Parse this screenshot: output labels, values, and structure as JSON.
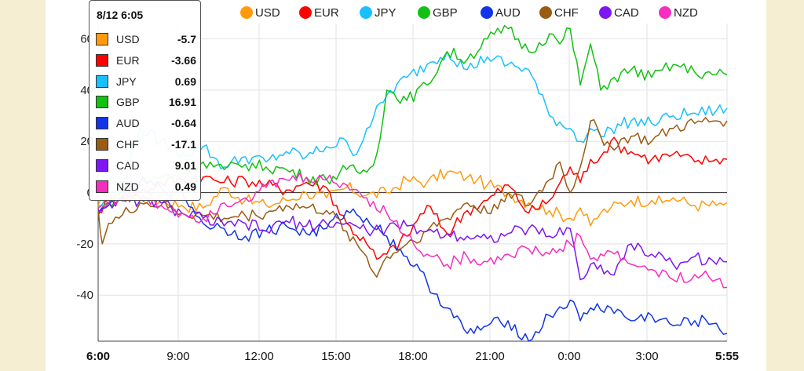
{
  "chart_data": {
    "type": "line",
    "ylim": [
      -58,
      66
    ],
    "y_ticks": [
      -40,
      -20,
      0,
      20,
      40,
      60
    ],
    "x_ticks": [
      "6:00",
      "9:00",
      "12:00",
      "15:00",
      "18:00",
      "21:00",
      "0:00",
      "3:00",
      "5:55"
    ],
    "x_ticks_bold": [
      "6:00",
      "5:55"
    ],
    "grid": true,
    "legend_position": "top",
    "series": [
      {
        "name": "USD",
        "color": "#ff9a0e",
        "points": [
          [
            0,
            -5
          ],
          [
            0.3,
            -3
          ],
          [
            1,
            0
          ],
          [
            2,
            -2
          ],
          [
            3,
            -3
          ],
          [
            4,
            -5
          ],
          [
            5,
            -6
          ],
          [
            6,
            2
          ],
          [
            7,
            -3
          ],
          [
            8,
            -5
          ],
          [
            9,
            -3
          ],
          [
            10,
            0
          ],
          [
            11,
            -2
          ],
          [
            12,
            2
          ],
          [
            13,
            -1
          ],
          [
            14,
            0
          ],
          [
            15,
            5
          ],
          [
            16,
            4
          ],
          [
            17,
            8
          ],
          [
            18,
            6
          ],
          [
            18.5,
            5
          ],
          [
            19,
            3
          ],
          [
            20,
            0
          ],
          [
            21,
            -4
          ],
          [
            22,
            -7
          ],
          [
            23,
            -10
          ],
          [
            23.5,
            -6
          ],
          [
            24,
            -13
          ],
          [
            24.5,
            -8
          ],
          [
            25,
            -6
          ],
          [
            26,
            -3
          ],
          [
            27,
            -3
          ],
          [
            27.5,
            -4
          ],
          [
            28,
            -2
          ],
          [
            29,
            -5
          ],
          [
            30,
            -5
          ],
          [
            30.5,
            -4
          ]
        ]
      },
      {
        "name": "EUR",
        "color": "#ff0000",
        "points": [
          [
            0,
            -7
          ],
          [
            0.5,
            -4
          ],
          [
            1,
            -2
          ],
          [
            2,
            0
          ],
          [
            3,
            4
          ],
          [
            4,
            5
          ],
          [
            5,
            6
          ],
          [
            6,
            4
          ],
          [
            7,
            5
          ],
          [
            8,
            3
          ],
          [
            9,
            1
          ],
          [
            10,
            4
          ],
          [
            11,
            2
          ],
          [
            12,
            -12
          ],
          [
            13,
            -20
          ],
          [
            13.5,
            -26
          ],
          [
            14,
            -24
          ],
          [
            15,
            -17
          ],
          [
            16,
            -5
          ],
          [
            17,
            -16
          ],
          [
            18,
            -7
          ],
          [
            19,
            -3
          ],
          [
            20,
            3
          ],
          [
            21,
            -8
          ],
          [
            22,
            -3
          ],
          [
            23,
            10
          ],
          [
            23.5,
            4
          ],
          [
            24,
            13
          ],
          [
            24.5,
            14
          ],
          [
            25,
            20
          ],
          [
            26,
            16
          ],
          [
            27,
            13
          ],
          [
            28,
            15
          ],
          [
            29,
            12
          ],
          [
            30,
            13
          ],
          [
            30.5,
            13
          ]
        ]
      },
      {
        "name": "JPY",
        "color": "#19c0ff",
        "points": [
          [
            0,
            -5
          ],
          [
            0.5,
            -3
          ],
          [
            1,
            0
          ],
          [
            2,
            25
          ],
          [
            3,
            20
          ],
          [
            4,
            15
          ],
          [
            5,
            18
          ],
          [
            6,
            10
          ],
          [
            7,
            14
          ],
          [
            8,
            12
          ],
          [
            9,
            16
          ],
          [
            10,
            14
          ],
          [
            11,
            18
          ],
          [
            12,
            20
          ],
          [
            12.5,
            15
          ],
          [
            13,
            25
          ],
          [
            14,
            38
          ],
          [
            15,
            45
          ],
          [
            16,
            50
          ],
          [
            17,
            55
          ],
          [
            18,
            48
          ],
          [
            19,
            53
          ],
          [
            20,
            50
          ],
          [
            21,
            48
          ],
          [
            22,
            30
          ],
          [
            23,
            25
          ],
          [
            23.5,
            20
          ],
          [
            24,
            25
          ],
          [
            24.5,
            22
          ],
          [
            25,
            25
          ],
          [
            26,
            28
          ],
          [
            27,
            27
          ],
          [
            28,
            30
          ],
          [
            29,
            31
          ],
          [
            30,
            32
          ],
          [
            30.5,
            33
          ]
        ]
      },
      {
        "name": "GBP",
        "color": "#13c113",
        "points": [
          [
            0,
            -8
          ],
          [
            0.5,
            -4
          ],
          [
            1,
            -1
          ],
          [
            2,
            4
          ],
          [
            3,
            6
          ],
          [
            4,
            8
          ],
          [
            5,
            12
          ],
          [
            6,
            9
          ],
          [
            7,
            11
          ],
          [
            8,
            10
          ],
          [
            9,
            9
          ],
          [
            10,
            6
          ],
          [
            11,
            5
          ],
          [
            12,
            9
          ],
          [
            13,
            8
          ],
          [
            13.5,
            15
          ],
          [
            14,
            40
          ],
          [
            15,
            36
          ],
          [
            16,
            42
          ],
          [
            17,
            55
          ],
          [
            18,
            52
          ],
          [
            19,
            60
          ],
          [
            20,
            64
          ],
          [
            21,
            55
          ],
          [
            22,
            62
          ],
          [
            22.5,
            58
          ],
          [
            23,
            64
          ],
          [
            23.5,
            42
          ],
          [
            24,
            58
          ],
          [
            24.5,
            40
          ],
          [
            25,
            44
          ],
          [
            26,
            48
          ],
          [
            27,
            45
          ],
          [
            28,
            50
          ],
          [
            29,
            47
          ],
          [
            30,
            46
          ],
          [
            30.5,
            46
          ]
        ]
      },
      {
        "name": "AUD",
        "color": "#1234e8",
        "points": [
          [
            0,
            -9
          ],
          [
            0.5,
            -5
          ],
          [
            1,
            -2
          ],
          [
            2,
            4
          ],
          [
            3,
            2
          ],
          [
            4,
            0
          ],
          [
            5,
            -12
          ],
          [
            6,
            -14
          ],
          [
            7,
            -17
          ],
          [
            8,
            -15
          ],
          [
            9,
            -13
          ],
          [
            10,
            -16
          ],
          [
            11,
            -14
          ],
          [
            12,
            -7
          ],
          [
            13,
            -10
          ],
          [
            14,
            -17
          ],
          [
            15,
            -25
          ],
          [
            16,
            -35
          ],
          [
            17,
            -45
          ],
          [
            18,
            -55
          ],
          [
            19,
            -52
          ],
          [
            20,
            -50
          ],
          [
            21,
            -58
          ],
          [
            22,
            -48
          ],
          [
            23,
            -42
          ],
          [
            23.5,
            -50
          ],
          [
            24,
            -45
          ],
          [
            25,
            -45
          ],
          [
            26,
            -50
          ],
          [
            27,
            -48
          ],
          [
            28,
            -52
          ],
          [
            29,
            -50
          ],
          [
            30,
            -51
          ],
          [
            30.5,
            -55
          ]
        ]
      },
      {
        "name": "CHF",
        "color": "#9a5b13",
        "points": [
          [
            0,
            -6
          ],
          [
            0.2,
            -20
          ],
          [
            0.5,
            -12
          ],
          [
            1,
            -10
          ],
          [
            2,
            -4
          ],
          [
            3,
            -5
          ],
          [
            4,
            -8
          ],
          [
            5,
            -9
          ],
          [
            6,
            -10
          ],
          [
            7,
            -9
          ],
          [
            8,
            -8
          ],
          [
            9,
            -5
          ],
          [
            10,
            -6
          ],
          [
            11,
            -7
          ],
          [
            12,
            -15
          ],
          [
            13,
            -25
          ],
          [
            13.5,
            -33
          ],
          [
            14,
            -25
          ],
          [
            15,
            -20
          ],
          [
            16,
            -15
          ],
          [
            17,
            -10
          ],
          [
            18,
            -4
          ],
          [
            19,
            -8
          ],
          [
            20,
            0
          ],
          [
            21,
            -5
          ],
          [
            22,
            5
          ],
          [
            22.5,
            12
          ],
          [
            23,
            0
          ],
          [
            23.5,
            10
          ],
          [
            24,
            28
          ],
          [
            24.5,
            22
          ],
          [
            25,
            18
          ],
          [
            26,
            22
          ],
          [
            27,
            20
          ],
          [
            28,
            25
          ],
          [
            29,
            27
          ],
          [
            30,
            28
          ],
          [
            30.5,
            28
          ]
        ]
      },
      {
        "name": "CAD",
        "color": "#7d16f3",
        "points": [
          [
            0,
            -7
          ],
          [
            0.5,
            -4
          ],
          [
            1,
            -3
          ],
          [
            2,
            -3
          ],
          [
            3,
            -4
          ],
          [
            4,
            -8
          ],
          [
            5,
            -10
          ],
          [
            6,
            -13
          ],
          [
            7,
            -12
          ],
          [
            8,
            -15
          ],
          [
            9,
            -11
          ],
          [
            10,
            -13
          ],
          [
            11,
            -12
          ],
          [
            12,
            -12
          ],
          [
            13,
            -15
          ],
          [
            14,
            -14
          ],
          [
            15,
            -13
          ],
          [
            16,
            -15
          ],
          [
            17,
            -16
          ],
          [
            18,
            -17
          ],
          [
            19,
            -18
          ],
          [
            20,
            -16
          ],
          [
            21,
            -14
          ],
          [
            22,
            -17
          ],
          [
            23,
            -14
          ],
          [
            23.5,
            -34
          ],
          [
            24,
            -28
          ],
          [
            25,
            -32
          ],
          [
            26,
            -20
          ],
          [
            27,
            -24
          ],
          [
            28,
            -28
          ],
          [
            29,
            -25
          ],
          [
            30,
            -28
          ],
          [
            30.5,
            -27
          ]
        ]
      },
      {
        "name": "NZD",
        "color": "#f52ebf",
        "points": [
          [
            0,
            -6
          ],
          [
            0.5,
            -4
          ],
          [
            1,
            -2
          ],
          [
            2,
            -2
          ],
          [
            3,
            -5
          ],
          [
            4,
            -8
          ],
          [
            5,
            -10
          ],
          [
            6,
            -4
          ],
          [
            7,
            -2
          ],
          [
            8,
            2
          ],
          [
            9,
            5
          ],
          [
            10,
            6
          ],
          [
            11,
            5
          ],
          [
            12,
            3
          ],
          [
            13,
            -2
          ],
          [
            14,
            -8
          ],
          [
            15,
            -17
          ],
          [
            16,
            -24
          ],
          [
            17,
            -28
          ],
          [
            18,
            -25
          ],
          [
            19,
            -27
          ],
          [
            20,
            -24
          ],
          [
            21,
            -22
          ],
          [
            22,
            -24
          ],
          [
            23,
            -20
          ],
          [
            23.5,
            -17
          ],
          [
            24,
            -26
          ],
          [
            25,
            -23
          ],
          [
            26,
            -28
          ],
          [
            27,
            -30
          ],
          [
            28,
            -34
          ],
          [
            29,
            -32
          ],
          [
            30,
            -34
          ],
          [
            30.5,
            -37
          ]
        ]
      }
    ],
    "tooltip": {
      "title": "8/12 6:05",
      "rows": [
        {
          "name": "USD",
          "value": "-5.7",
          "color": "#ff9a0e"
        },
        {
          "name": "EUR",
          "value": "-3.66",
          "color": "#ff0000"
        },
        {
          "name": "JPY",
          "value": "0.69",
          "color": "#19c0ff"
        },
        {
          "name": "GBP",
          "value": "16.91",
          "color": "#13c113"
        },
        {
          "name": "AUD",
          "value": "-0.64",
          "color": "#1234e8"
        },
        {
          "name": "CHF",
          "value": "-17.1",
          "color": "#9a5b13"
        },
        {
          "name": "CAD",
          "value": "9.01",
          "color": "#7d16f3"
        },
        {
          "name": "NZD",
          "value": "0.49",
          "color": "#f52ebf"
        }
      ]
    }
  }
}
